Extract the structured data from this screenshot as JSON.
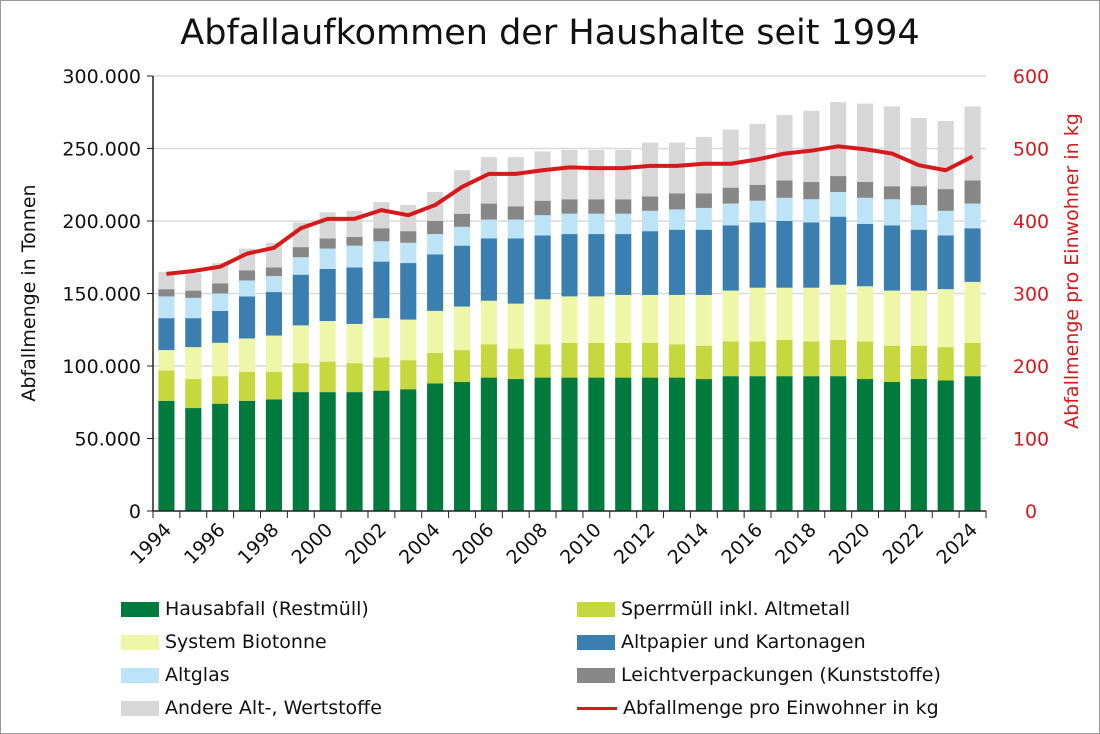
{
  "chart_data": {
    "type": "bar",
    "stacked": true,
    "title": "Abfallaufkommen der Haushalte seit 1994",
    "ylabel": "Abfallmenge in Tonnen",
    "y2label": "Abfallmenge pro Einwohner in kg",
    "ylim": [
      0,
      300000
    ],
    "y2lim": [
      0,
      600
    ],
    "yticks": [
      "0",
      "50.000",
      "100.000",
      "150.000",
      "200.000",
      "250.000",
      "300.000"
    ],
    "y2ticks": [
      "0",
      "100",
      "200",
      "300",
      "400",
      "500",
      "600"
    ],
    "grid": true,
    "legend_position": "bottom",
    "categories": [
      "1994",
      "1995",
      "1996",
      "1997",
      "1998",
      "1999",
      "2000",
      "2001",
      "2002",
      "2003",
      "2004",
      "2005",
      "2006",
      "2007",
      "2008",
      "2009",
      "2010",
      "2011",
      "2012",
      "2013",
      "2014",
      "2015",
      "2016",
      "2017",
      "2018",
      "2019",
      "2020",
      "2021",
      "2022",
      "2023",
      "2024"
    ],
    "xtick_labels": [
      "1994",
      "1996",
      "1998",
      "2000",
      "2002",
      "2004",
      "2006",
      "2008",
      "2010",
      "2012",
      "2014",
      "2016",
      "2018",
      "2020",
      "2022",
      "2024"
    ],
    "series": [
      {
        "name": "Hausabfall (Restmüll)",
        "color": "#007a3d",
        "values": [
          76000,
          71000,
          74000,
          76000,
          77000,
          82000,
          82000,
          82000,
          83000,
          84000,
          88000,
          89000,
          92000,
          91000,
          92000,
          92000,
          92000,
          92000,
          92000,
          92000,
          91000,
          93000,
          93000,
          93000,
          93000,
          93000,
          91000,
          89000,
          91000,
          90000,
          93000
        ]
      },
      {
        "name": "Sperrmüll inkl. Altmetall",
        "color": "#c5d83e",
        "values": [
          21000,
          20000,
          19000,
          20000,
          19000,
          20000,
          21000,
          20000,
          23000,
          20000,
          21000,
          22000,
          23000,
          21000,
          23000,
          24000,
          24000,
          24000,
          24000,
          23000,
          23000,
          24000,
          24000,
          25000,
          24000,
          25000,
          26000,
          25000,
          23000,
          23000,
          23000
        ]
      },
      {
        "name": "System Biotonne",
        "color": "#eef7a8",
        "values": [
          14000,
          22000,
          23000,
          23000,
          25000,
          26000,
          28000,
          27000,
          27000,
          28000,
          29000,
          30000,
          30000,
          31000,
          31000,
          32000,
          32000,
          33000,
          33000,
          34000,
          35000,
          35000,
          37000,
          36000,
          37000,
          38000,
          38000,
          38000,
          38000,
          40000,
          42000
        ]
      },
      {
        "name": "Altpapier und Kartonagen",
        "color": "#3a7fb0",
        "values": [
          22000,
          20000,
          22000,
          29000,
          30000,
          35000,
          36000,
          39000,
          39000,
          39000,
          39000,
          42000,
          43000,
          45000,
          44000,
          43000,
          43000,
          42000,
          44000,
          45000,
          45000,
          45000,
          45000,
          46000,
          45000,
          47000,
          43000,
          45000,
          42000,
          37000,
          37000
        ]
      },
      {
        "name": "Altglas",
        "color": "#bde3f7",
        "values": [
          15000,
          14000,
          12000,
          11000,
          11000,
          12000,
          14000,
          15000,
          14000,
          14000,
          14000,
          13000,
          13000,
          13000,
          14000,
          14000,
          14000,
          14000,
          14000,
          14000,
          15000,
          15000,
          15000,
          16000,
          16000,
          17000,
          18000,
          18000,
          17000,
          17000,
          17000
        ]
      },
      {
        "name": "Leichtverpackungen (Kunststoffe)",
        "color": "#878787",
        "values": [
          5000,
          5000,
          7000,
          7000,
          6000,
          7000,
          7000,
          6000,
          9000,
          8000,
          9000,
          9000,
          11000,
          9000,
          10000,
          10000,
          10000,
          10000,
          10000,
          11000,
          10000,
          11000,
          11000,
          12000,
          12000,
          11000,
          11000,
          9000,
          13000,
          15000,
          16000
        ]
      },
      {
        "name": "Andere Alt-, Wertstoffe",
        "color": "#d7d7d7",
        "values": [
          12000,
          12000,
          14000,
          15000,
          17000,
          17000,
          18000,
          18000,
          18000,
          18000,
          20000,
          30000,
          32000,
          34000,
          34000,
          34000,
          34000,
          34000,
          37000,
          35000,
          39000,
          40000,
          42000,
          45000,
          49000,
          51000,
          54000,
          55000,
          47000,
          47000,
          51000
        ]
      }
    ],
    "line_series": {
      "name": "Abfallmenge pro Einwohner in kg",
      "color": "#d7191c",
      "axis": "right",
      "values": [
        327,
        331,
        337,
        355,
        363,
        390,
        403,
        403,
        415,
        408,
        422,
        447,
        465,
        465,
        470,
        474,
        473,
        473,
        476,
        476,
        479,
        479,
        485,
        493,
        497,
        503,
        499,
        493,
        477,
        470,
        489
      ]
    }
  }
}
